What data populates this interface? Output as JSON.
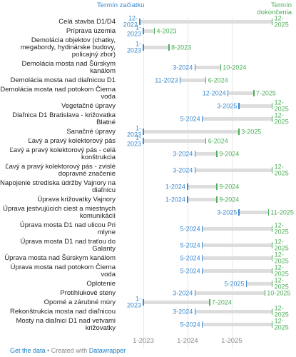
{
  "chart_data": {
    "type": "range",
    "categories": [
      "Celá stavba D1/D4",
      "Príprava územia",
      "Demolácia objektov (chatky, megabordy, hydinárske budovy, policajný zbor)",
      "Demolácia mosta nad Šúrskym kanálom",
      "Demolácia mosta nad diaľnicou D1",
      "Demolácia mosta nad potokom Čierna voda",
      "Vegetačné úpravy",
      "Diaľnica D1 Bratislava - križovatka Blatné",
      "Sanačné úpravy",
      "Ľavý a pravý kolektorový pás",
      "Ľavý a pravý kolektorový pás - celá konštrukcia",
      "Ľavý a pravý kolektorový pás - zvislé dopravné značenie",
      "Napojenie strediska údržby Vajnory na diaľnicu",
      "Úprava križovatky Vajnory",
      "Úprava jestvujúcich ciest a miestnych komunikácií",
      "Úprava mosta D1 nad ulicou Pri mlyne",
      "Úprava mosta D1 nad traťou do Galanty",
      "Úprava mosta nad Šúrskym kanálom",
      "Úprava mosta nad potokom Čierna voda",
      "Oplotenie",
      "Protihlukové steny",
      "Oporné a zárubné múry",
      "Rekonštrukcia mosta nad diaľnicou",
      "Mosty na diaľnici D1 nad vetvami križovatky"
    ],
    "series": [
      {
        "name": "Termín začiatku",
        "color": "#3d8ad1",
        "values": [
          "12-2022",
          "1-2023",
          "1-2023",
          "3-2024",
          "11-2023",
          "12-2024",
          "3-2025",
          "5-2024",
          "1-2023",
          "1-2023",
          "3-2024",
          "3-2024",
          "1-2024",
          "1-2024",
          "3-2025",
          "5-2024",
          "5-2024",
          "5-2024",
          "5-2024",
          "5-2025",
          "3-2024",
          "1-2023",
          "3-2024",
          "5-2024"
        ]
      },
      {
        "name": "Termín dokončenia",
        "color": "#4fae5a",
        "values": [
          "12-2025",
          "4-2023",
          "8-2023",
          "10-2024",
          "6-2024",
          "7-2025",
          "12-2025",
          "12-2025",
          "3-2025",
          "6-2024",
          "9-2024",
          "12-2025",
          "9-2024",
          "9-2024",
          "11-2025",
          "12-2025",
          "12-2025",
          "12-2025",
          "12-2025",
          "12-2025",
          "10-2025",
          "7-2024",
          "12-2025",
          "12-2025"
        ]
      }
    ],
    "xlim": [
      "7-2022",
      "2-2026"
    ],
    "xticks": [
      "1-2023",
      "1-2024",
      "1-2025"
    ],
    "grid": true,
    "bar_color": "#dddddd"
  },
  "footer": {
    "get_data": "Get the data",
    "created": "• Created with",
    "tool": "Datawrapper"
  }
}
